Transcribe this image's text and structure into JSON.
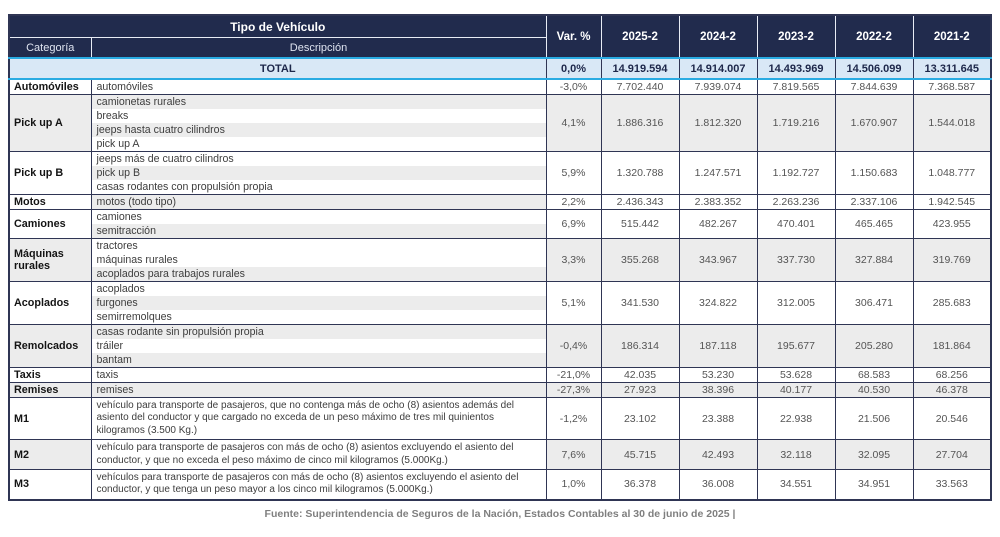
{
  "header": {
    "group_title": "Tipo de Vehículo",
    "categoria": "Categoría",
    "descripcion": "Descripción",
    "var_label": "Var. %",
    "years": [
      "2025-2",
      "2024-2",
      "2023-2",
      "2022-2",
      "2021-2"
    ]
  },
  "total": {
    "label": "TOTAL",
    "var": "0,0%",
    "values": [
      "14.919.594",
      "14.914.007",
      "14.493.969",
      "14.506.099",
      "13.311.645"
    ]
  },
  "rows": [
    {
      "category": "Automóviles",
      "descriptions": [
        "automóviles"
      ],
      "stripes": [
        false
      ],
      "var": "-3,0%",
      "values": [
        "7.702.440",
        "7.939.074",
        "7.819.565",
        "7.844.639",
        "7.368.587"
      ],
      "shaded": false
    },
    {
      "category": "Pick up A",
      "descriptions": [
        "camionetas rurales",
        "breaks",
        "jeeps hasta cuatro cilindros",
        "pick up A"
      ],
      "stripes": [
        true,
        false,
        true,
        false
      ],
      "var": "4,1%",
      "values": [
        "1.886.316",
        "1.812.320",
        "1.719.216",
        "1.670.907",
        "1.544.018"
      ],
      "shaded": true
    },
    {
      "category": "Pick up B",
      "descriptions": [
        "jeeps más de cuatro cilindros",
        "pick up B",
        "casas rodantes con propulsión propia"
      ],
      "stripes": [
        false,
        true,
        false
      ],
      "var": "5,9%",
      "values": [
        "1.320.788",
        "1.247.571",
        "1.192.727",
        "1.150.683",
        "1.048.777"
      ],
      "shaded": false
    },
    {
      "category": "Motos",
      "descriptions": [
        "motos (todo tipo)"
      ],
      "stripes": [
        true
      ],
      "var": "2,2%",
      "values": [
        "2.436.343",
        "2.383.352",
        "2.263.236",
        "2.337.106",
        "1.942.545"
      ],
      "shaded": false
    },
    {
      "category": "Camiones",
      "descriptions": [
        "camiones",
        "semitracción"
      ],
      "stripes": [
        false,
        true
      ],
      "var": "6,9%",
      "values": [
        "515.442",
        "482.267",
        "470.401",
        "465.465",
        "423.955"
      ],
      "shaded": false
    },
    {
      "category": "Máquinas rurales",
      "descriptions": [
        "tractores",
        "máquinas rurales",
        "acoplados para trabajos rurales"
      ],
      "stripes": [
        false,
        false,
        true
      ],
      "var": "3,3%",
      "values": [
        "355.268",
        "343.967",
        "337.730",
        "327.884",
        "319.769"
      ],
      "shaded": true
    },
    {
      "category": "Acoplados",
      "descriptions": [
        "acoplados",
        "furgones",
        "semirremolques"
      ],
      "stripes": [
        false,
        true,
        false
      ],
      "var": "5,1%",
      "values": [
        "341.530",
        "324.822",
        "312.005",
        "306.471",
        "285.683"
      ],
      "shaded": false
    },
    {
      "category": "Remolcados",
      "descriptions": [
        "casas rodante sin propulsión propia",
        "tráiler",
        "bantam"
      ],
      "stripes": [
        true,
        false,
        true
      ],
      "var": "-0,4%",
      "values": [
        "186.314",
        "187.118",
        "195.677",
        "205.280",
        "181.864"
      ],
      "shaded": true
    },
    {
      "category": "Taxis",
      "descriptions": [
        "taxis"
      ],
      "stripes": [
        false
      ],
      "var": "-21,0%",
      "values": [
        "42.035",
        "53.230",
        "53.628",
        "68.583",
        "68.256"
      ],
      "shaded": false
    },
    {
      "category": "Remises",
      "descriptions": [
        "remises"
      ],
      "stripes": [
        true
      ],
      "var": "-27,3%",
      "values": [
        "27.923",
        "38.396",
        "40.177",
        "40.530",
        "46.378"
      ],
      "shaded": true
    },
    {
      "category": "M1",
      "descriptions": [
        "vehículo para transporte de pasajeros, que no contenga más de ocho (8) asientos además del asiento del conductor y que cargado no exceda de un peso máximo de tres mil quinientos kilogramos (3.500 Kg.)"
      ],
      "stripes": [
        false
      ],
      "wrap": true,
      "var": "-1,2%",
      "values": [
        "23.102",
        "23.388",
        "22.938",
        "21.506",
        "20.546"
      ],
      "shaded": false
    },
    {
      "category": "M2",
      "descriptions": [
        "vehículo para transporte de pasajeros con más de ocho (8) asientos excluyendo el asiento del conductor, y que no exceda el peso máximo de cinco mil kilogramos (5.000Kg.)"
      ],
      "stripes": [
        false
      ],
      "wrap": true,
      "var": "7,6%",
      "values": [
        "45.715",
        "42.493",
        "32.118",
        "32.095",
        "27.704"
      ],
      "shaded": true
    },
    {
      "category": "M3",
      "descriptions": [
        "vehículos para transporte de pasajeros con más de ocho (8) asientos excluyendo el asiento del conductor, y que tenga un peso mayor a los cinco mil kilogramos (5.000Kg.)"
      ],
      "stripes": [
        false
      ],
      "wrap": true,
      "var": "1,0%",
      "values": [
        "36.378",
        "36.008",
        "34.551",
        "34.951",
        "33.563"
      ],
      "shaded": false
    }
  ],
  "footer": {
    "source": "Fuente: Superintendencia de Seguros de la Nación, Estados Contables al 30 de junio de 2025 |"
  },
  "colors": {
    "header_bg": "#212b4d",
    "accent_blue": "#29abe2",
    "total_bg": "#d9e8f6",
    "stripe_gray": "#ececec",
    "grid": "#2f3554"
  }
}
